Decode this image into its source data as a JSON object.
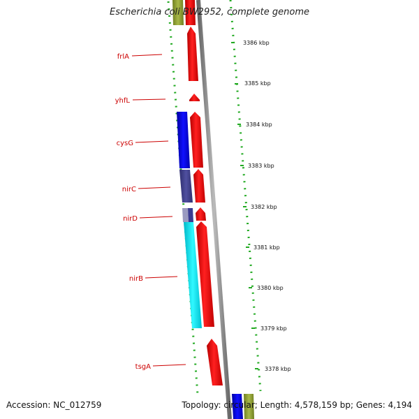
{
  "title": "Escherichia coli BW2952, complete genome",
  "footer": {
    "accession": "Accession: NC_012759",
    "topology": "Topology: circular; Length: 4,578,159 bp; Genes: 4,194"
  },
  "scale_labels": [
    "3386 kbp",
    "3385 kbp",
    "3384 kbp",
    "3383 kbp",
    "3382 kbp",
    "3381 kbp",
    "3380 kbp",
    "3379 kbp",
    "3378 kbp"
  ],
  "gene_labels": [
    "frlA",
    "yhfL",
    "cysG",
    "nirC",
    "nirD",
    "nirB",
    "tsgA"
  ],
  "colors": {
    "label_red": "#cc0000",
    "cds_red": "#ee0000",
    "cysG_blue": "#0000dd",
    "nirC_purple": "#404088",
    "nirB_cyan": "#00e0e8",
    "tick_green": "#22aa22",
    "backbone_gray": "#888888",
    "olive": "#8a9a30"
  }
}
